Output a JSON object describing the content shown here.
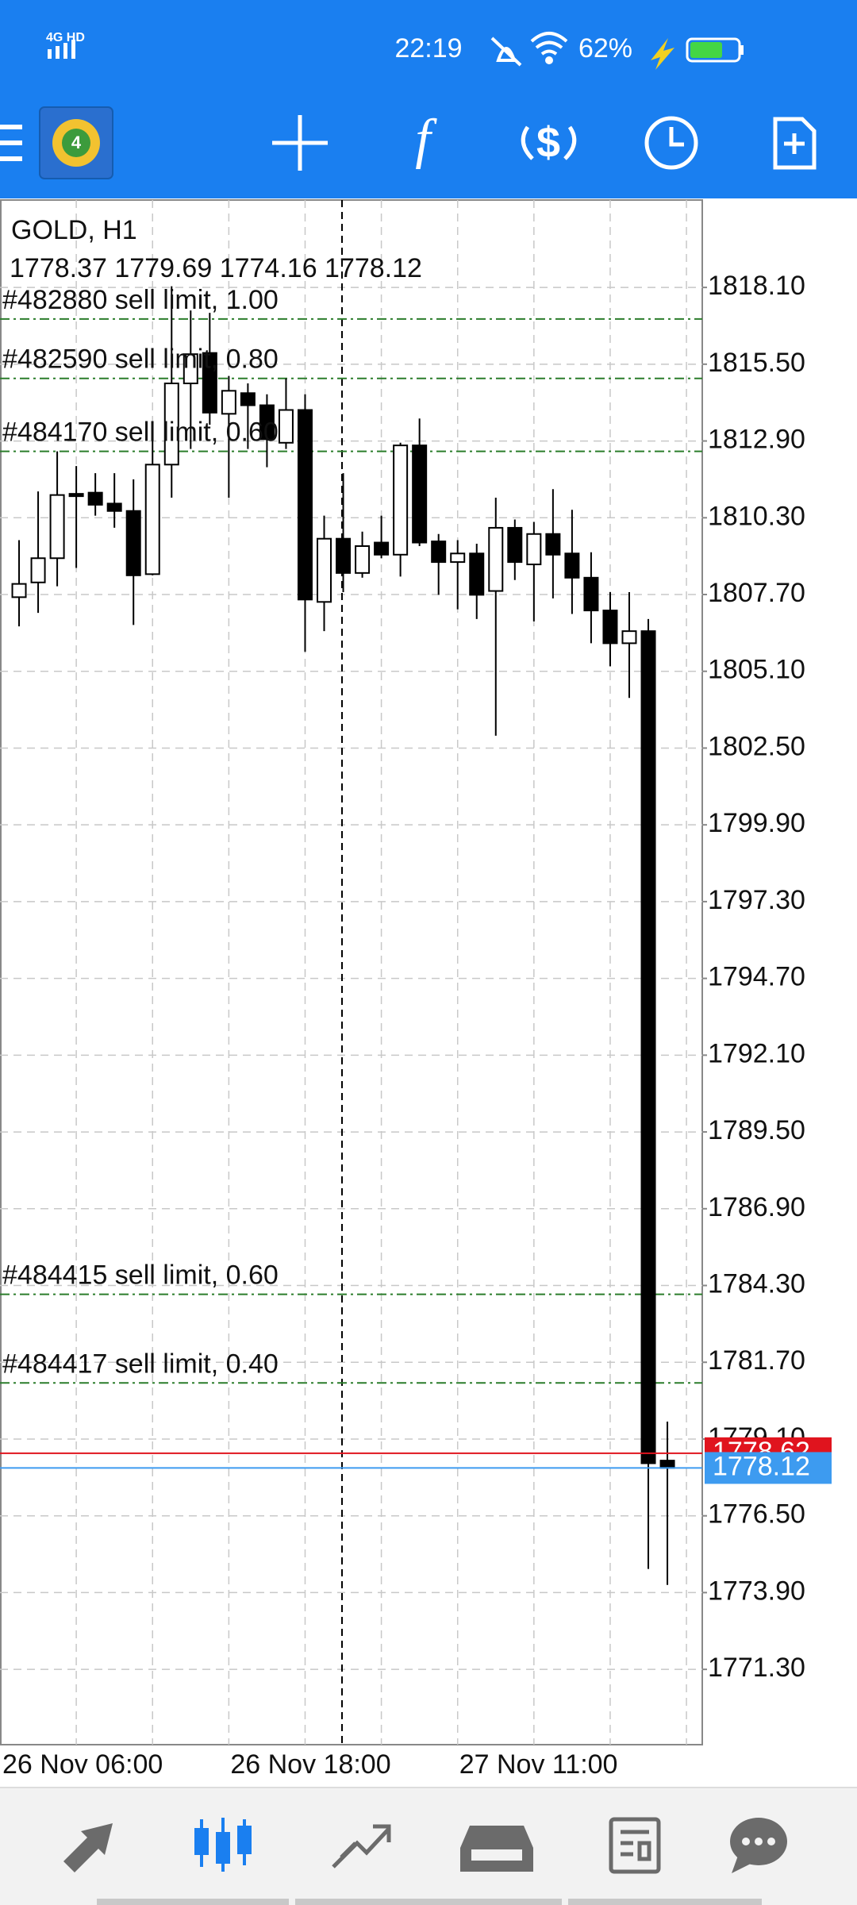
{
  "status_bar": {
    "time": "22:19",
    "battery": "62%",
    "network": "4G HD"
  },
  "chart_data": {
    "type": "candlestick",
    "title": "GOLD, H1",
    "ohlc_text": "1778.37 1779.69 1774.16 1778.12",
    "categories": [
      null,
      null,
      null,
      null,
      null,
      null,
      null,
      null,
      null,
      null,
      null,
      null,
      "26 Nov 18:00",
      null,
      null,
      null,
      null,
      null,
      null,
      null,
      null,
      null,
      null,
      null,
      "27 Nov 11:00",
      null,
      null,
      null,
      null,
      null,
      null,
      null,
      null,
      null,
      null,
      null
    ],
    "first_label": "26 Nov 06:00",
    "open": [
      null,
      1807.61,
      1808.11,
      1808.93,
      1811.11,
      1811.15,
      1810.78,
      1810.53,
      1808.39,
      1812.1,
      1814.85,
      1815.88,
      1813.82,
      1814.52,
      1814.11,
      1812.84,
      1813.95,
      1807.45,
      1809.59,
      1808.43,
      1809.46,
      1809.05,
      1812.75,
      1809.5,
      1808.8,
      1809.09,
      1807.82,
      1809.96,
      1808.72,
      1809.75,
      1809.09,
      1808.27,
      1807.16,
      1806.05,
      1806.46,
      1778.37
    ],
    "high": [
      null,
      1809.54,
      1811.19,
      1812.55,
      1812.05,
      1811.81,
      1811.81,
      1811.6,
      1813.25,
      1818.14,
      1817.32,
      1817.24,
      1815.1,
      1814.85,
      1814.48,
      1815.02,
      1814.48,
      1810.37,
      1811.81,
      1809.83,
      1810.37,
      1812.84,
      1813.66,
      1809.75,
      1809.54,
      1809.42,
      1810.98,
      1810.24,
      1810.16,
      1811.27,
      1810.57,
      1809.13,
      1807.78,
      1807.78,
      1806.87,
      1779.69
    ],
    "low": [
      null,
      1806.62,
      1807.08,
      1807.98,
      1808.6,
      1810.37,
      1809.96,
      1806.67,
      1808.35,
      1810.98,
      1812.63,
      1813.45,
      1810.98,
      1812.63,
      1812.01,
      1812.63,
      1805.76,
      1806.46,
      1807.78,
      1808.27,
      1808.93,
      1808.31,
      1809.34,
      1807.69,
      1807.2,
      1806.87,
      1802.92,
      1808.19,
      1806.79,
      1807.57,
      1807.04,
      1806.05,
      1805.27,
      1804.2,
      1774.7,
      1774.16
    ],
    "close": [
      null,
      1808.06,
      1808.93,
      1811.07,
      1811.03,
      1810.74,
      1810.53,
      1808.35,
      1812.1,
      1814.85,
      1815.84,
      1813.86,
      1814.6,
      1814.11,
      1812.96,
      1813.95,
      1807.53,
      1809.59,
      1808.43,
      1809.34,
      1809.05,
      1812.75,
      1809.46,
      1808.8,
      1809.09,
      1807.69,
      1809.96,
      1808.8,
      1809.75,
      1809.05,
      1808.27,
      1807.16,
      1806.05,
      1806.46,
      1778.28,
      1778.12
    ],
    "up_color": "#ffffff",
    "down_color": "#000000",
    "ylim": [
      1768.75,
      1821.06
    ],
    "yticks": [
      {
        "value": 1818.1,
        "label": "1818.10"
      },
      {
        "value": 1815.5,
        "label": "1815.50"
      },
      {
        "value": 1812.9,
        "label": "1812.90"
      },
      {
        "value": 1810.3,
        "label": "1810.30"
      },
      {
        "value": 1807.7,
        "label": "1807.70"
      },
      {
        "value": 1805.1,
        "label": "1805.10"
      },
      {
        "value": 1802.5,
        "label": "1802.50"
      },
      {
        "value": 1799.9,
        "label": "1799.90"
      },
      {
        "value": 1797.3,
        "label": "1797.30"
      },
      {
        "value": 1794.7,
        "label": "1794.70"
      },
      {
        "value": 1792.1,
        "label": "1792.10"
      },
      {
        "value": 1789.5,
        "label": "1789.50"
      },
      {
        "value": 1786.9,
        "label": "1786.90"
      },
      {
        "value": 1784.3,
        "label": "1784.30"
      },
      {
        "value": 1781.7,
        "label": "1781.70"
      },
      {
        "value": 1779.1,
        "label": "1779.10"
      },
      {
        "value": 1776.5,
        "label": "1776.50"
      },
      {
        "value": 1773.9,
        "label": "1773.90"
      },
      {
        "value": 1771.3,
        "label": "1771.30"
      }
    ],
    "grid": true,
    "orders": [
      {
        "label": "#482880 sell limit, 1.00",
        "price": 1817.03
      },
      {
        "label": "#482590 sell limit, 0.80",
        "price": 1815.02
      },
      {
        "label": "#484170 sell limit, 0.60",
        "price": 1812.55
      },
      {
        "label": "#484415 sell limit, 0.60",
        "price": 1784.0
      },
      {
        "label": "#484417 sell limit, 0.40",
        "price": 1781.0
      }
    ],
    "order_color": "#2b7d2b",
    "ask": {
      "value": 1778.62,
      "label": "1778.62",
      "color": "#e0141e"
    },
    "bid": {
      "value": 1778.12,
      "label": "1778.12",
      "color": "#3d9bf0"
    }
  }
}
